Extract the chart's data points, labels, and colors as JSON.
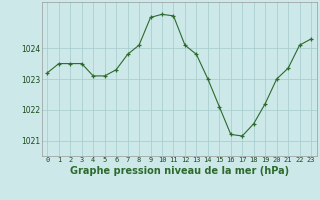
{
  "x": [
    0,
    1,
    2,
    3,
    4,
    5,
    6,
    7,
    8,
    9,
    10,
    11,
    12,
    13,
    14,
    15,
    16,
    17,
    18,
    19,
    20,
    21,
    22,
    23
  ],
  "y": [
    1023.2,
    1023.5,
    1023.5,
    1023.5,
    1023.1,
    1023.1,
    1023.3,
    1023.8,
    1024.1,
    1025.0,
    1025.1,
    1025.05,
    1024.1,
    1023.8,
    1023.0,
    1022.1,
    1021.2,
    1021.15,
    1021.55,
    1022.2,
    1023.0,
    1023.35,
    1024.1,
    1024.3
  ],
  "xlabel": "Graphe pression niveau de la mer (hPa)",
  "xlim": [
    -0.5,
    23.5
  ],
  "ylim": [
    1020.5,
    1025.5
  ],
  "yticks": [
    1021,
    1022,
    1023,
    1024
  ],
  "xticks": [
    0,
    1,
    2,
    3,
    4,
    5,
    6,
    7,
    8,
    9,
    10,
    11,
    12,
    13,
    14,
    15,
    16,
    17,
    18,
    19,
    20,
    21,
    22,
    23
  ],
  "line_color": "#2d6a2d",
  "marker": "+",
  "bg_color": "#cce8e8",
  "grid_color": "#aacece",
  "xlabel_fontsize": 7,
  "xlabel_fontweight": "bold",
  "tick_fontsize": 5,
  "ytick_fontsize": 5.5
}
